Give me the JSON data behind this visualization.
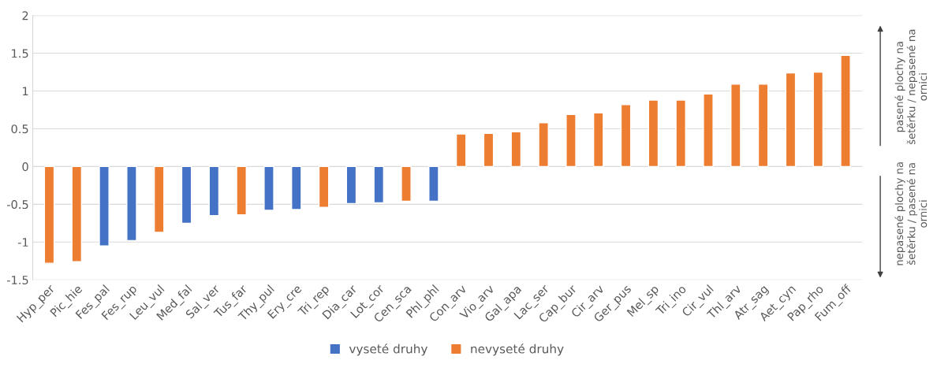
{
  "chart_data": {
    "type": "bar",
    "categories": [
      "Hyp_per",
      "Pic_hie",
      "Fes_pal",
      "Fes_rup",
      "Leu_vul",
      "Med_fal",
      "Sal_ver",
      "Tus_far",
      "Thy_pul",
      "Ery_cre",
      "Tri_rep",
      "Dia_car",
      "Lot_cor",
      "Cen_sca",
      "Phl_phl",
      "Con_arv",
      "Vio_arv",
      "Gal_apa",
      "Lac_ser",
      "Cap_bur",
      "Cir_arv",
      "Ger_pus",
      "Mel_sp",
      "Tri_ino",
      "Cir_vul",
      "Thl_arv",
      "Atr_sag",
      "Aet_cyn",
      "Pap_rho",
      "Fum_off"
    ],
    "series": [
      {
        "name": "vyseté druhy",
        "color": "#4472c4",
        "values": [
          null,
          null,
          -1.05,
          -0.98,
          null,
          -0.75,
          -0.65,
          null,
          -0.58,
          -0.57,
          null,
          -0.49,
          -0.48,
          null,
          -0.46,
          null,
          null,
          null,
          null,
          null,
          null,
          null,
          null,
          null,
          null,
          null,
          null,
          null,
          null,
          null
        ]
      },
      {
        "name": "nevyseté druhy",
        "color": "#ed7d31",
        "values": [
          -1.28,
          -1.26,
          null,
          null,
          -0.87,
          null,
          null,
          -0.64,
          null,
          null,
          -0.54,
          null,
          null,
          -0.46,
          null,
          0.43,
          0.44,
          0.46,
          0.58,
          0.69,
          0.71,
          0.82,
          0.88,
          0.88,
          0.96,
          1.09,
          1.09,
          1.24,
          1.25,
          1.47
        ]
      }
    ],
    "ylim": [
      -1.5,
      2
    ],
    "yticks": [
      -1.5,
      -1,
      -0.5,
      0,
      0.5,
      1,
      1.5,
      2
    ],
    "grid": "y",
    "legend": "bottom",
    "annotations": [
      "pasené plochy na šetěrku / nepasené na ornici",
      "nepasené plochy na šetěrku / pasené na ornici"
    ]
  }
}
